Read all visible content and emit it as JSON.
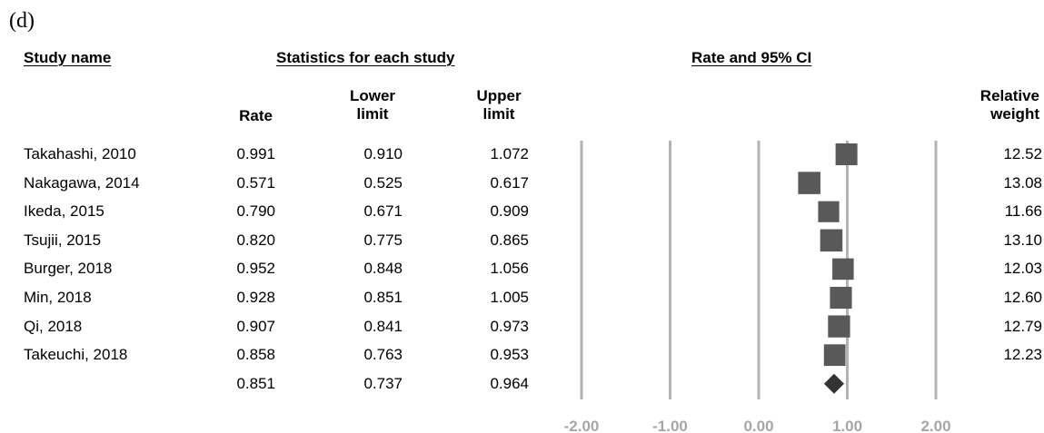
{
  "panel_label": "(d)",
  "headers": {
    "study": "Study name",
    "statistics": "Statistics for each study",
    "rate_ci": "Rate and 95% CI"
  },
  "columns": {
    "rate": "Rate",
    "lower": [
      "Lower",
      "limit"
    ],
    "upper": [
      "Upper",
      "limit"
    ],
    "weight": [
      "Relative",
      "weight"
    ]
  },
  "chart_data": {
    "type": "forest",
    "x_ticks": [
      "-2.00",
      "-1.00",
      "0.00",
      "1.00",
      "2.00"
    ],
    "xlim": [
      -2,
      2
    ],
    "grid": true,
    "studies": [
      {
        "name": "Takahashi, 2010",
        "rate": "0.991",
        "lower": "0.910",
        "upper": "1.072",
        "weight": "12.52"
      },
      {
        "name": "Nakagawa, 2014",
        "rate": "0.571",
        "lower": "0.525",
        "upper": "0.617",
        "weight": "13.08"
      },
      {
        "name": "Ikeda, 2015",
        "rate": "0.790",
        "lower": "0.671",
        "upper": "0.909",
        "weight": "11.66"
      },
      {
        "name": "Tsujii, 2015",
        "rate": "0.820",
        "lower": "0.775",
        "upper": "0.865",
        "weight": "13.10"
      },
      {
        "name": "Burger, 2018",
        "rate": "0.952",
        "lower": "0.848",
        "upper": "1.056",
        "weight": "12.03"
      },
      {
        "name": "Min, 2018",
        "rate": "0.928",
        "lower": "0.851",
        "upper": "1.005",
        "weight": "12.60"
      },
      {
        "name": "Qi, 2018",
        "rate": "0.907",
        "lower": "0.841",
        "upper": "0.973",
        "weight": "12.79"
      },
      {
        "name": "Takeuchi, 2018",
        "rate": "0.858",
        "lower": "0.763",
        "upper": "0.953",
        "weight": "12.23"
      }
    ],
    "summary": {
      "rate": "0.851",
      "lower": "0.737",
      "upper": "0.964"
    },
    "colors": {
      "marker": "#595959",
      "summary": "#333333",
      "grid": "#b3b3b3",
      "tick_label": "#a6a6a6"
    }
  }
}
